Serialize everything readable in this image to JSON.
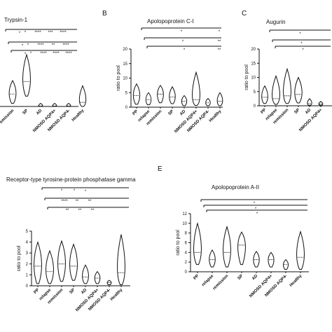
{
  "figure": {
    "panels": [
      {
        "letter": "",
        "title": "Trypsin-1"
      },
      {
        "letter": "B",
        "title": "Apolopoprotein C-I"
      },
      {
        "letter": "C",
        "title": "Augurin"
      },
      {
        "letter": "",
        "title": "Receptor-type tyrosine-protein phosphatase gamma"
      },
      {
        "letter": "E",
        "title": "Apolopoprotein A-II"
      }
    ]
  },
  "chart_data": [
    {
      "type": "violin",
      "title": "Trypsin-1",
      "categories": [
        "emission",
        "SP",
        "AD",
        "NMOSD AQP4+",
        "NMOSD AQP4-",
        "Healthy"
      ],
      "medians": [
        1.2,
        2.4,
        0.05,
        0.05,
        0.05,
        0.4
      ],
      "mins": [
        0.3,
        1.0,
        0.0,
        0.0,
        0.0,
        0.0
      ],
      "maxs": [
        2.5,
        5.0,
        0.3,
        0.3,
        0.3,
        2.0
      ],
      "significance": [
        {
          "label": "*",
          "stars": [
            "*",
            "****",
            "***",
            "****"
          ]
        },
        {
          "label": "*",
          "stars": [
            "*",
            "****",
            "**",
            "****"
          ]
        },
        {
          "label": "*",
          "stars": [
            "*",
            "****",
            "****",
            "****"
          ]
        }
      ]
    },
    {
      "type": "violin",
      "title": "Apolopoprotein C-I",
      "categories": [
        "PP",
        "relapse",
        "remission",
        "SP",
        "AD",
        "NMOSD AQP4+",
        "NMOSD AQP4-",
        "Healthy"
      ],
      "ylabel": "ratio to pool",
      "yticks": [
        "0",
        "5",
        "10",
        "15",
        "20"
      ],
      "ylim": [
        0,
        20
      ],
      "medians": [
        4,
        2.5,
        4.5,
        3.5,
        2,
        2.5,
        1.5,
        2
      ],
      "mins": [
        1,
        0.8,
        1.5,
        1.2,
        0.5,
        0.6,
        0.5,
        0.5
      ],
      "maxs": [
        8,
        5,
        7.5,
        7,
        4,
        12,
        3,
        5
      ],
      "significance": [
        {
          "text": "*",
          "right": "*"
        },
        {
          "text": "*",
          "right": "**"
        },
        {
          "text": "*",
          "right": "**"
        }
      ]
    },
    {
      "type": "violin",
      "title": "Augurin",
      "categories": [
        "PP",
        "relapse",
        "remission",
        "SP",
        "AD",
        "NMOSD AQP4+",
        "NMOSD AQP4-"
      ],
      "ylabel": "ratio to pool",
      "yticks": [
        "0",
        "5",
        "10",
        "15",
        "20"
      ],
      "ylim": [
        0,
        20
      ],
      "medians": [
        3,
        2.5,
        3.5,
        4,
        0.8,
        0.6,
        0.5
      ],
      "mins": [
        0.8,
        0.5,
        0.8,
        1,
        0.2,
        0.2,
        0.2
      ],
      "maxs": [
        7,
        10.5,
        13,
        10,
        2.5,
        1.5,
        1.2
      ],
      "significance": [
        {
          "text": "*"
        },
        {
          "text": "*"
        },
        {
          "text": "*"
        }
      ]
    },
    {
      "type": "violin",
      "title": "Receptor-type tyrosine-protein phosphatase gamma",
      "categories": [
        "PP",
        "relapse",
        "remission",
        "SP",
        "AD",
        "NMOSD AQP4+",
        "NMOSD AQP4-",
        "Healthy"
      ],
      "ylabel": "ratio to pool",
      "yticks": [
        "0",
        "1",
        "2",
        "3",
        "4",
        "5"
      ],
      "ylim": [
        0,
        5
      ],
      "medians": [
        1.8,
        1.3,
        2,
        1.8,
        0.8,
        0.7,
        0.3,
        1.2
      ],
      "mins": [
        0.2,
        0.2,
        0.4,
        0.5,
        0.2,
        0.2,
        0.1,
        0.1
      ],
      "maxs": [
        4,
        3.2,
        4.1,
        3.8,
        1.9,
        1.3,
        0.5,
        4.7
      ],
      "significance": [
        {
          "text": "*",
          "stars": [
            "*",
            "*"
          ]
        },
        {
          "text": "",
          "stars": [
            "****",
            "**",
            "**"
          ]
        },
        {
          "text": "",
          "stars": [
            "**",
            "**",
            "**"
          ]
        }
      ]
    },
    {
      "type": "violin",
      "title": "Apolopoprotein A-II",
      "categories": [
        "PP",
        "relapse",
        "remission",
        "SP",
        "AD",
        "NMOSD AQP4+",
        "NMOSD AQP4-",
        "Healthy"
      ],
      "ylabel": "ratio to pool",
      "yticks": [
        "0",
        "2",
        "4",
        "6",
        "8",
        "10",
        "12"
      ],
      "ylim": [
        0,
        12
      ],
      "medians": [
        4,
        2.5,
        4,
        5.5,
        2.5,
        2.5,
        1.5,
        3
      ],
      "mins": [
        1.5,
        1,
        1,
        1.5,
        1,
        1,
        0.5,
        0.5
      ],
      "maxs": [
        10,
        4.5,
        9.3,
        8.2,
        4.2,
        4,
        2.5,
        8.3
      ],
      "significance": [
        {
          "text": "*"
        },
        {
          "text": "*"
        },
        {
          "text": "*"
        }
      ]
    }
  ]
}
